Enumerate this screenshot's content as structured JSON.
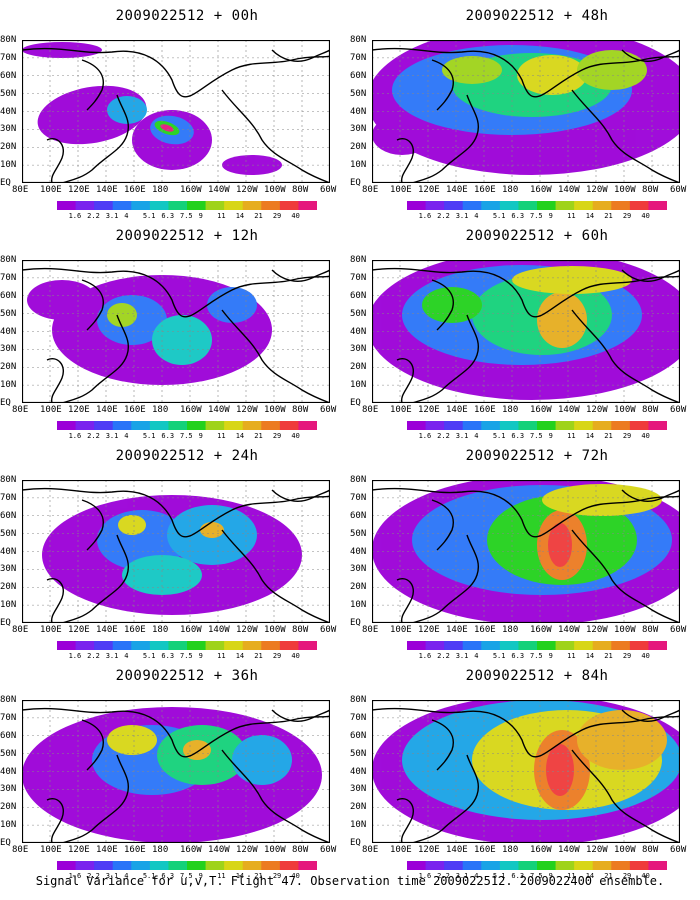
{
  "panels": [
    {
      "title": "2009022512 + 00h",
      "lead": 0
    },
    {
      "title": "2009022512 + 48h",
      "lead": 48
    },
    {
      "title": "2009022512 + 12h",
      "lead": 12
    },
    {
      "title": "2009022512 + 60h",
      "lead": 60
    },
    {
      "title": "2009022512 + 24h",
      "lead": 24
    },
    {
      "title": "2009022512 + 72h",
      "lead": 72
    },
    {
      "title": "2009022512 + 36h",
      "lead": 36
    },
    {
      "title": "2009022512 + 84h",
      "lead": 84
    }
  ],
  "lon_labels": [
    "80E",
    "100E",
    "120E",
    "140E",
    "160E",
    "180",
    "160W",
    "140W",
    "120W",
    "100W",
    "80W",
    "60W"
  ],
  "lat_labels": [
    "80N",
    "70N",
    "60N",
    "50N",
    "40N",
    "30N",
    "20N",
    "10N",
    "EQ"
  ],
  "colorbar_levels": [
    "1.6",
    "2.2",
    "3.1",
    "4",
    "5.1",
    "6.3",
    "7.5",
    "9",
    "11",
    "14",
    "21",
    "29",
    "40"
  ],
  "colors": {
    "scale": [
      "#9b00d8",
      "#7a22ee",
      "#4f3cf5",
      "#2a74f8",
      "#19a3e6",
      "#12c7c3",
      "#14d17a",
      "#22d11c",
      "#9fd31a",
      "#d8d616",
      "#e6ad1f",
      "#ec7b21",
      "#ef3b3b",
      "#e5177d"
    ]
  },
  "caption": "Signal Variance for u,v,T. Flight 47. Observation time 2009022512. 2009022400 ensemble."
}
